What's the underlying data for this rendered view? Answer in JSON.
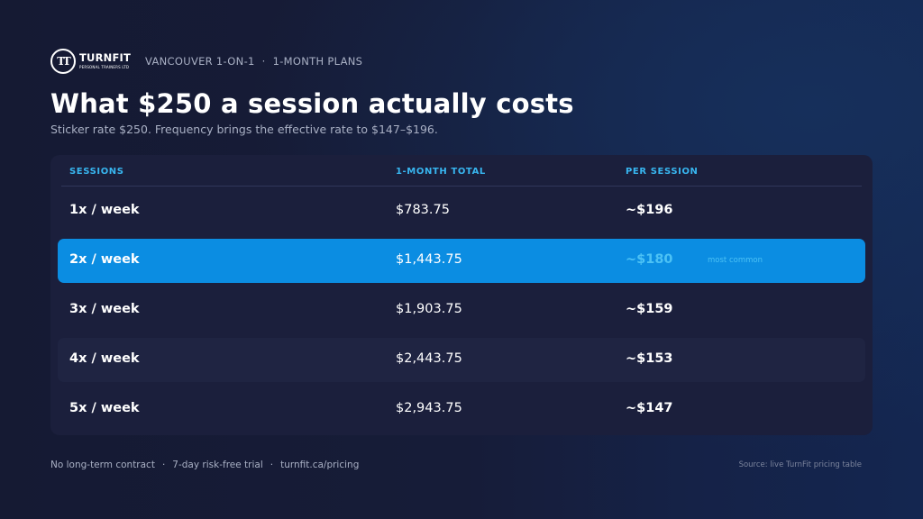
{
  "brand": {
    "name": "TURNFIT",
    "tagline": "PERSONAL TRAINERS LTD",
    "monogram": "TT"
  },
  "breadcrumb": [
    "VANCOUVER 1-ON-1",
    "1-MONTH PLANS"
  ],
  "title": "What $250 a session actually costs",
  "subtitle": "Sticker rate $250. Frequency brings the effective rate to $147–$196.",
  "table": {
    "headers": [
      "SESSIONS",
      "1-MONTH TOTAL",
      "PER SESSION"
    ],
    "rows": [
      {
        "sessions": "1x / week",
        "total": "$783.75",
        "per_session": "~$196",
        "note": ""
      },
      {
        "sessions": "2x / week",
        "total": "$1,443.75",
        "per_session": "~$180",
        "note": "most common"
      },
      {
        "sessions": "3x / week",
        "total": "$1,903.75",
        "per_session": "~$159",
        "note": ""
      },
      {
        "sessions": "4x / week",
        "total": "$2,443.75",
        "per_session": "~$153",
        "note": ""
      },
      {
        "sessions": "5x / week",
        "total": "$2,943.75",
        "per_session": "~$147",
        "note": ""
      }
    ]
  },
  "footer": {
    "items": [
      "No long-term contract",
      "7-day risk-free trial",
      "turnfit.ca/pricing"
    ],
    "source": "Source: live TurnFit pricing table"
  },
  "colors": {
    "accent": "#38b6f0",
    "highlight_row": "#0b8de2",
    "card": "#1b1f3c",
    "background": "#151a33"
  }
}
